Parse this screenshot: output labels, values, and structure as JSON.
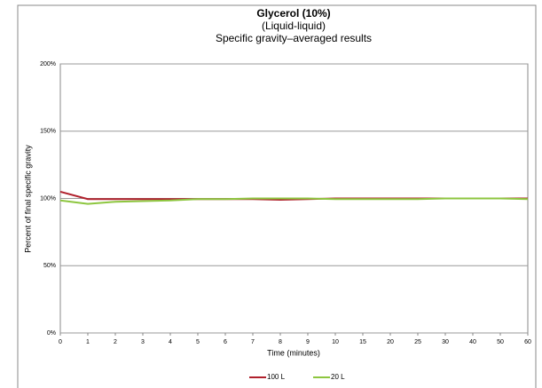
{
  "chart_data": {
    "type": "line",
    "title": "Glycerol (10%)",
    "subtitle": "(Liquid-liquid)",
    "subtitle2": "Specific gravity–averaged results",
    "x_label": "Time (minutes)",
    "y_label": "Percent of final specific gravity",
    "categories": [
      "0",
      "1",
      "2",
      "3",
      "4",
      "5",
      "6",
      "7",
      "8",
      "9",
      "10",
      "15",
      "20",
      "25",
      "30",
      "40",
      "50",
      "60"
    ],
    "series": [
      {
        "name": "100 L",
        "color": "#b0202c",
        "values": [
          105,
          99.5,
          99.5,
          99.5,
          99.5,
          99.5,
          99.5,
          99.5,
          99,
          99.5,
          100,
          100,
          100,
          100,
          100,
          100,
          100,
          100
        ]
      },
      {
        "name": "20 L",
        "color": "#8dc63f",
        "values": [
          98.5,
          96,
          97.5,
          98,
          98.5,
          99.5,
          99.5,
          100,
          100,
          100,
          99.5,
          99.5,
          99.5,
          99.5,
          100,
          100,
          100,
          99.5
        ]
      }
    ],
    "ylim": [
      0,
      200
    ],
    "yticks": [
      {
        "value": 0,
        "label": "0%"
      },
      {
        "value": 50,
        "label": "50%"
      },
      {
        "value": 100,
        "label": "100%"
      },
      {
        "value": 150,
        "label": "150%"
      },
      {
        "value": 200,
        "label": "200%"
      }
    ],
    "grid": true,
    "legend": "bottom"
  }
}
